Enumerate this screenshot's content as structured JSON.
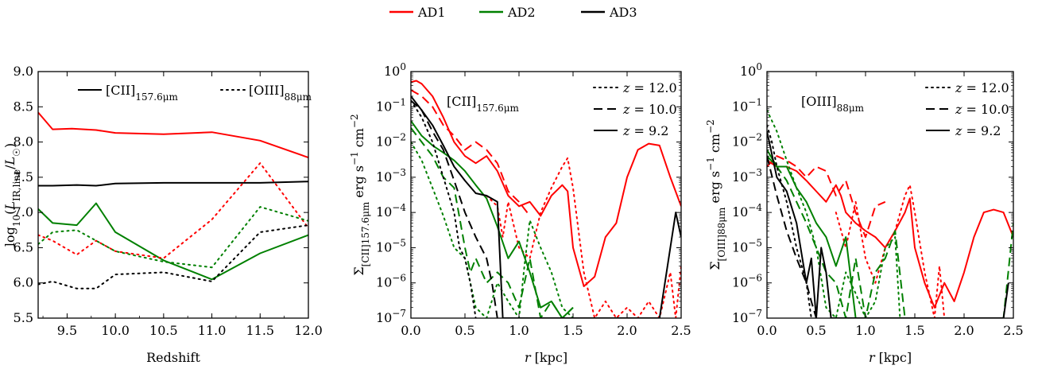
{
  "legend_top": [
    {
      "name": "AD1",
      "color": "#ff0000"
    },
    {
      "name": "AD2",
      "color": "#008000"
    },
    {
      "name": "AD3",
      "color": "#000000"
    }
  ],
  "chart_data": [
    {
      "type": "line",
      "xlabel": "Redshift",
      "ylabel": "log₁₀(L_IR,line/L☉)",
      "xlim": [
        9.2,
        12.0
      ],
      "ylim": [
        5.5,
        9.0
      ],
      "xticks": [
        "9.5",
        "10.0",
        "10.5",
        "11.0",
        "11.5",
        "12.0"
      ],
      "yticks": [
        "5.5",
        "6.0",
        "6.5",
        "7.0",
        "7.5",
        "8.0",
        "8.5",
        "9.0"
      ],
      "legend": [
        {
          "label": "[CII]157.6μm",
          "style": "solid"
        },
        {
          "label": "[OIII]88μm",
          "style": "dotted"
        }
      ],
      "series": [
        {
          "name": "AD1",
          "line": "[CII]157.6μm",
          "style": "solid",
          "color": "#ff0000",
          "x": [
            9.2,
            9.35,
            9.55,
            9.8,
            10.0,
            10.5,
            11.0,
            11.5,
            12.0
          ],
          "y": [
            8.42,
            8.18,
            8.19,
            8.17,
            8.13,
            8.11,
            8.14,
            8.02,
            7.78
          ]
        },
        {
          "name": "AD3",
          "line": "[CII]157.6μm",
          "style": "solid",
          "color": "#000000",
          "x": [
            9.2,
            9.35,
            9.6,
            9.8,
            10.0,
            10.5,
            11.0,
            11.5,
            12.0
          ],
          "y": [
            7.38,
            7.38,
            7.39,
            7.38,
            7.41,
            7.42,
            7.42,
            7.42,
            7.44
          ]
        },
        {
          "name": "AD2",
          "line": "[CII]157.6μm",
          "style": "solid",
          "color": "#008000",
          "x": [
            9.2,
            9.35,
            9.6,
            9.8,
            10.0,
            10.5,
            11.0,
            11.5,
            12.0
          ],
          "y": [
            7.05,
            6.85,
            6.82,
            7.13,
            6.72,
            6.32,
            6.05,
            6.42,
            6.68
          ]
        },
        {
          "name": "AD1",
          "line": "[OIII]88μm",
          "style": "dotted",
          "color": "#ff0000",
          "x": [
            9.2,
            9.35,
            9.6,
            9.8,
            10.0,
            10.5,
            11.0,
            11.5,
            12.0
          ],
          "y": [
            6.68,
            6.6,
            6.4,
            6.6,
            6.45,
            6.35,
            6.9,
            7.7,
            6.78
          ]
        },
        {
          "name": "AD2",
          "line": "[OIII]88μm",
          "style": "dotted",
          "color": "#008000",
          "x": [
            9.2,
            9.35,
            9.6,
            9.8,
            10.0,
            10.5,
            11.0,
            11.5,
            12.0
          ],
          "y": [
            6.55,
            6.72,
            6.75,
            6.6,
            6.45,
            6.3,
            6.22,
            7.08,
            6.88
          ]
        },
        {
          "name": "AD3",
          "line": "[OIII]88μm",
          "style": "dotted",
          "color": "#000000",
          "x": [
            9.2,
            9.35,
            9.6,
            9.8,
            10.0,
            10.5,
            11.0,
            11.5,
            12.0
          ],
          "y": [
            5.98,
            6.02,
            5.92,
            5.92,
            6.12,
            6.15,
            6.02,
            6.72,
            6.82
          ]
        }
      ]
    },
    {
      "type": "line",
      "annotation": "[CII]157.6μm",
      "xlabel": "r [kpc]",
      "ylabel": "Σ[CII]157.6μm erg s⁻¹ cm⁻²",
      "yscale": "log",
      "xlim": [
        0.0,
        2.5
      ],
      "ylim": [
        1e-07,
        1.0
      ],
      "xticks": [
        "0.0",
        "0.5",
        "1.0",
        "1.5",
        "2.0",
        "2.5"
      ],
      "yticks": [
        "10^-7",
        "10^-6",
        "10^-5",
        "10^-4",
        "10^-3",
        "10^-2",
        "10^-1",
        "10^0"
      ],
      "legend": [
        {
          "label": "z = 12.0",
          "style": "dotted"
        },
        {
          "label": "z = 10.0",
          "style": "dashed"
        },
        {
          "label": "z = 9.2",
          "style": "solid"
        }
      ],
      "series": [
        {
          "name": "AD1",
          "z": "9.2",
          "style": "solid",
          "color": "#ff0000",
          "x": [
            0.0,
            0.05,
            0.1,
            0.2,
            0.3,
            0.4,
            0.5,
            0.6,
            0.7,
            0.8,
            0.9,
            1.0,
            1.1,
            1.2,
            1.3,
            1.4,
            1.45,
            1.5,
            1.6,
            1.7,
            1.8,
            1.9,
            2.0,
            2.1,
            2.2,
            2.3,
            2.4,
            2.5
          ],
          "y": [
            0.5,
            0.55,
            0.45,
            0.2,
            0.05,
            0.01,
            0.004,
            0.0025,
            0.004,
            0.0015,
            0.0003,
            0.00015,
            0.0002,
            8e-05,
            0.0003,
            0.0006,
            0.0004,
            1e-05,
            8e-07,
            1.5e-06,
            2e-05,
            5e-05,
            0.001,
            0.006,
            0.009,
            0.008,
            0.001,
            0.00015
          ]
        },
        {
          "name": "AD1",
          "z": "10.0",
          "style": "dashed",
          "color": "#ff0000",
          "x": [
            0.0,
            0.1,
            0.2,
            0.3,
            0.4,
            0.5,
            0.6,
            0.7,
            0.8,
            0.9,
            1.0,
            1.1
          ],
          "y": [
            0.3,
            0.2,
            0.1,
            0.03,
            0.015,
            0.006,
            0.01,
            0.006,
            0.0025,
            0.0004,
            0.0002,
            8e-05
          ]
        },
        {
          "name": "AD1",
          "z": "12.0",
          "style": "dotted",
          "color": "#ff0000",
          "x": [
            0.7,
            0.8,
            0.85,
            0.9,
            1.0,
            1.1,
            1.2,
            1.3,
            1.4,
            1.45,
            1.5,
            1.6,
            1.7,
            1.8,
            1.9,
            2.0,
            2.1,
            2.2,
            2.3,
            2.4,
            2.45,
            2.5
          ],
          "y": [
            0.0003,
            0.00015,
            2e-05,
            0.0002,
            1e-05,
            5e-06,
            0.0001,
            0.0005,
            0.002,
            0.0035,
            0.0005,
            2e-06,
            1e-07,
            3e-07,
            1e-07,
            2e-07,
            1e-07,
            3e-07,
            1e-07,
            2e-06,
            1e-07,
            3e-06
          ]
        },
        {
          "name": "AD2",
          "z": "9.2",
          "style": "solid",
          "color": "#008000",
          "x": [
            0.0,
            0.1,
            0.2,
            0.3,
            0.4,
            0.5,
            0.6,
            0.7,
            0.8,
            0.9,
            1.0,
            1.1,
            1.2,
            1.3,
            1.4,
            1.5
          ],
          "y": [
            0.04,
            0.015,
            0.008,
            0.005,
            0.003,
            0.0015,
            0.0006,
            0.00025,
            4e-05,
            5e-06,
            1.5e-05,
            2e-06,
            2e-07,
            3e-07,
            1e-07,
            2e-07
          ]
        },
        {
          "name": "AD2",
          "z": "10.0",
          "style": "dashed",
          "color": "#008000",
          "x": [
            0.0,
            0.1,
            0.2,
            0.3,
            0.4,
            0.5,
            0.55,
            0.6,
            0.7,
            0.8,
            0.9,
            1.0,
            1.1,
            1.2,
            1.3,
            1.4,
            1.5
          ],
          "y": [
            0.025,
            0.01,
            0.004,
            0.001,
            0.0005,
            1e-05,
            2e-06,
            5e-06,
            1e-06,
            2e-06,
            1e-06,
            2e-07,
            5e-06,
            1e-07,
            3e-07,
            1e-07,
            2e-07
          ]
        },
        {
          "name": "AD2",
          "z": "12.0",
          "style": "dotted",
          "color": "#008000",
          "x": [
            0.0,
            0.1,
            0.2,
            0.3,
            0.4,
            0.5,
            0.6,
            0.7,
            0.8,
            0.9,
            1.0,
            1.05,
            1.1,
            1.2,
            1.3,
            1.4,
            1.5
          ],
          "y": [
            0.01,
            0.003,
            0.0005,
            8e-05,
            1e-05,
            5e-06,
            2e-07,
            1e-07,
            1e-06,
            3e-07,
            1e-07,
            3e-06,
            6e-05,
            1e-05,
            2e-06,
            2e-07,
            1e-07
          ]
        },
        {
          "name": "AD3",
          "z": "9.2",
          "style": "solid",
          "color": "#000000",
          "x": [
            0.0,
            0.1,
            0.2,
            0.3,
            0.4,
            0.5,
            0.6,
            0.7,
            0.8,
            0.85,
            2.3,
            2.4,
            2.45,
            2.5
          ],
          "y": [
            0.2,
            0.08,
            0.03,
            0.008,
            0.002,
            0.0008,
            0.00035,
            0.0003,
            0.0002,
            1e-07,
            1e-07,
            1e-05,
            0.0001,
            2e-05
          ]
        },
        {
          "name": "AD3",
          "z": "10.0",
          "style": "dashed",
          "color": "#000000",
          "x": [
            0.0,
            0.1,
            0.2,
            0.3,
            0.4,
            0.5,
            0.6,
            0.7,
            0.75,
            0.8
          ],
          "y": [
            0.15,
            0.08,
            0.02,
            0.006,
            0.0008,
            0.0001,
            2e-05,
            5e-06,
            1e-06,
            1e-07
          ]
        },
        {
          "name": "AD3",
          "z": "12.0",
          "style": "dotted",
          "color": "#000000",
          "x": [
            0.0,
            0.1,
            0.2,
            0.3,
            0.4,
            0.45,
            0.5,
            0.55,
            0.6
          ],
          "y": [
            0.15,
            0.05,
            0.01,
            0.001,
            0.0001,
            1e-05,
            5e-06,
            1e-06,
            1e-07
          ]
        }
      ]
    },
    {
      "type": "line",
      "annotation": "[OIII]88μm",
      "xlabel": "r [kpc]",
      "ylabel": "Σ[OIII]88μm erg s⁻¹ cm⁻²",
      "yscale": "log",
      "xlim": [
        0.0,
        2.5
      ],
      "ylim": [
        1e-07,
        1.0
      ],
      "xticks": [
        "0.0",
        "0.5",
        "1.0",
        "1.5",
        "2.0",
        "2.5"
      ],
      "yticks": [
        "10^-7",
        "10^-6",
        "10^-5",
        "10^-4",
        "10^-3",
        "10^-2",
        "10^-1",
        "10^0"
      ],
      "legend": [
        {
          "label": "z = 12.0",
          "style": "dotted"
        },
        {
          "label": "z = 10.0",
          "style": "dashed"
        },
        {
          "label": "z = 9.2",
          "style": "solid"
        }
      ],
      "series": [
        {
          "name": "AD1",
          "z": "9.2",
          "style": "solid",
          "color": "#ff0000",
          "x": [
            0.0,
            0.1,
            0.2,
            0.3,
            0.4,
            0.5,
            0.6,
            0.7,
            0.75,
            0.8,
            0.9,
            1.0,
            1.1,
            1.2,
            1.3,
            1.4,
            1.45,
            1.5,
            1.6,
            1.7,
            1.8,
            1.9,
            2.0,
            2.1,
            2.2,
            2.3,
            2.4,
            2.5
          ],
          "y": [
            0.003,
            0.002,
            0.002,
            0.0015,
            0.0008,
            0.0004,
            0.0002,
            0.0006,
            0.0003,
            0.0001,
            5e-05,
            3e-05,
            2e-05,
            1e-05,
            3e-05,
            0.0001,
            0.00025,
            1e-05,
            1e-06,
            2e-07,
            1e-06,
            3e-07,
            2e-06,
            2e-05,
            0.0001,
            0.00012,
            0.0001,
            2e-05
          ]
        },
        {
          "name": "AD1",
          "z": "10.0",
          "style": "dashed",
          "color": "#ff0000",
          "x": [
            0.0,
            0.1,
            0.2,
            0.3,
            0.4,
            0.5,
            0.6,
            0.7,
            0.8,
            0.9,
            1.0,
            1.1,
            1.2
          ],
          "y": [
            0.002,
            0.004,
            0.003,
            0.002,
            0.001,
            0.002,
            0.0015,
            0.0003,
            0.0008,
            0.0001,
            2e-05,
            0.00015,
            0.0002
          ]
        },
        {
          "name": "AD1",
          "z": "12.0",
          "style": "dotted",
          "color": "#ff0000",
          "x": [
            0.7,
            0.8,
            0.9,
            1.0,
            1.1,
            1.2,
            1.3,
            1.4,
            1.45,
            1.5,
            1.6,
            1.7,
            1.75,
            1.8
          ],
          "y": [
            0.0001,
            1e-05,
            0.0002,
            5e-06,
            1e-06,
            1e-05,
            3e-05,
            0.0003,
            0.0006,
            0.0001,
            2e-06,
            1e-07,
            3e-06,
            1e-07
          ]
        },
        {
          "name": "AD2",
          "z": "9.2",
          "style": "solid",
          "color": "#008000",
          "x": [
            0.0,
            0.1,
            0.2,
            0.3,
            0.4,
            0.5,
            0.6,
            0.7,
            0.8,
            0.9
          ],
          "y": [
            0.006,
            0.002,
            0.002,
            0.0005,
            0.0002,
            5e-05,
            2e-05,
            3e-06,
            2e-05,
            1e-07
          ]
        },
        {
          "name": "AD2",
          "z": "10.0",
          "style": "dashed",
          "color": "#008000",
          "x": [
            0.0,
            0.1,
            0.2,
            0.3,
            0.4,
            0.5,
            0.6,
            0.7,
            0.8,
            0.9,
            1.0,
            1.1,
            1.2,
            1.3,
            1.4,
            2.4,
            2.5
          ],
          "y": [
            0.004,
            0.002,
            0.0008,
            0.0002,
            5e-05,
            1e-05,
            2e-06,
            1e-06,
            1e-07,
            5e-06,
            1e-07,
            2e-06,
            5e-06,
            3e-05,
            1e-07,
            1e-07,
            5e-05
          ]
        },
        {
          "name": "AD2",
          "z": "12.0",
          "style": "dotted",
          "color": "#008000",
          "x": [
            0.0,
            0.1,
            0.2,
            0.3,
            0.4,
            0.5,
            0.6,
            0.7,
            0.8,
            0.9,
            1.0,
            1.1,
            1.2,
            1.3,
            1.35
          ],
          "y": [
            0.08,
            0.02,
            0.003,
            0.0005,
            0.0001,
            1e-05,
            2e-07,
            1e-07,
            2e-06,
            5e-07,
            1e-07,
            3e-07,
            1e-05,
            2e-05,
            1e-07
          ]
        },
        {
          "name": "AD3",
          "z": "9.2",
          "style": "solid",
          "color": "#000000",
          "x": [
            0.0,
            0.1,
            0.2,
            0.3,
            0.4,
            0.45,
            0.5,
            0.55,
            0.6,
            0.65,
            2.4,
            2.45
          ],
          "y": [
            0.02,
            0.001,
            0.0004,
            5e-05,
            1e-06,
            5e-06,
            1e-07,
            1e-05,
            2e-06,
            1e-07,
            1e-07,
            1e-06
          ]
        },
        {
          "name": "AD3",
          "z": "10.0",
          "style": "dashed",
          "color": "#000000",
          "x": [
            0.0,
            0.1,
            0.2,
            0.3,
            0.4,
            0.45,
            0.5
          ],
          "y": [
            0.004,
            0.0003,
            3e-05,
            5e-06,
            1e-06,
            3e-07,
            1e-07
          ]
        },
        {
          "name": "AD3",
          "z": "12.0",
          "style": "dotted",
          "color": "#000000",
          "x": [
            0.0,
            0.05,
            0.1,
            0.2,
            0.3,
            0.4,
            0.45
          ],
          "y": [
            0.03,
            0.01,
            0.002,
            0.0002,
            1e-05,
            1e-06,
            1e-07
          ]
        }
      ]
    }
  ]
}
